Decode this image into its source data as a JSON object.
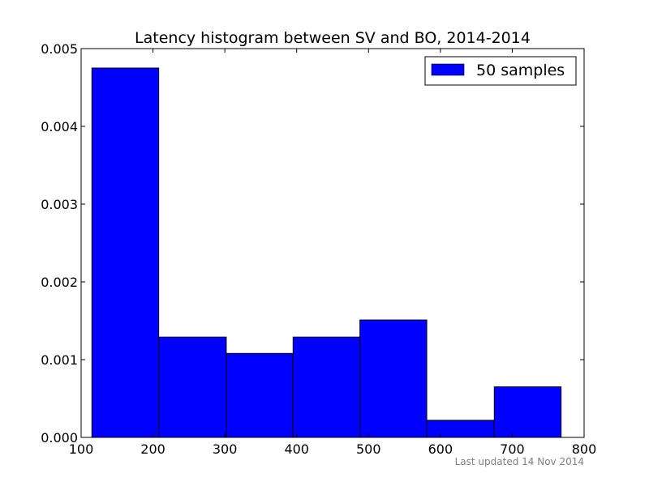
{
  "chart_data": {
    "type": "bar",
    "title": "Latency histogram between SV and BO, 2014-2014",
    "xlabel": "",
    "ylabel": "",
    "xlim": [
      100,
      800
    ],
    "ylim": [
      0,
      0.005
    ],
    "x_ticks": [
      100,
      200,
      300,
      400,
      500,
      600,
      700,
      800
    ],
    "y_ticks": [
      0.0,
      0.001,
      0.002,
      0.003,
      0.004,
      0.005
    ],
    "x_tick_labels": [
      "100",
      "200",
      "300",
      "400",
      "500",
      "600",
      "700",
      "800"
    ],
    "y_tick_labels": [
      "0.000",
      "0.001",
      "0.002",
      "0.003",
      "0.004",
      "0.005"
    ],
    "grid": false,
    "legend_position": "top-right",
    "series": [
      {
        "name": "50 samples",
        "color": "#0000ff",
        "bins": [
          {
            "x0": 115,
            "x1": 208,
            "value": 0.00475
          },
          {
            "x0": 208,
            "x1": 302,
            "value": 0.00129
          },
          {
            "x0": 302,
            "x1": 395,
            "value": 0.00108
          },
          {
            "x0": 395,
            "x1": 488,
            "value": 0.00129
          },
          {
            "x0": 488,
            "x1": 581,
            "value": 0.00151
          },
          {
            "x0": 581,
            "x1": 675,
            "value": 0.00022
          },
          {
            "x0": 675,
            "x1": 768,
            "value": 0.00065
          }
        ]
      }
    ],
    "footnote": "Last updated 14 Nov 2014"
  }
}
